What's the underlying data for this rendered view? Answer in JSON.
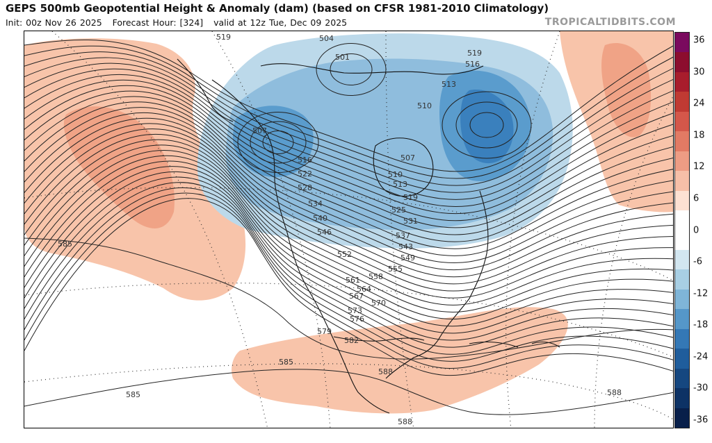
{
  "header": {
    "title": "GEPS 500mb Geopotential Height & Anomaly (dam) (based on CFSR 1981-2010 Climatology)",
    "init": "Init: 00z Nov 26 2025",
    "forecast_hour": "Forecast Hour: [324]",
    "valid": "valid at 12z Tue, Dec 09 2025",
    "credit": "TROPICALTIDBITS.COM"
  },
  "colorbar": {
    "ticks": [
      "36",
      "30",
      "24",
      "18",
      "12",
      "6",
      "0",
      "-6",
      "-12",
      "-18",
      "-24",
      "-30",
      "-36"
    ],
    "colors": [
      "#7a0a5e",
      "#8c0d2e",
      "#a81d2c",
      "#c03a33",
      "#d4574a",
      "#e27a64",
      "#ed9c84",
      "#f6bfa8",
      "#fde1d3",
      "#ffffff",
      "#ffffff",
      "#d2e6f0",
      "#a8cfe4",
      "#7fb5d8",
      "#5597c9",
      "#3478b6",
      "#1f5d9c",
      "#154780",
      "#0d3265",
      "#081f4a"
    ]
  },
  "contour_labels": [
    "519",
    "504",
    "501",
    "519",
    "516",
    "513",
    "510",
    "507",
    "507",
    "516",
    "522",
    "528",
    "534",
    "540",
    "546",
    "552",
    "510",
    "513",
    "519",
    "525",
    "531",
    "537",
    "543",
    "549",
    "555",
    "558",
    "561",
    "564",
    "567",
    "570",
    "573",
    "576",
    "579",
    "582",
    "585",
    "585",
    "585",
    "588",
    "588",
    "588"
  ],
  "map": {
    "background": "#ffffff",
    "positive_anomaly_color": "#f8c4aa",
    "strong_positive_color": "#ee9d80",
    "negative_anomaly_colors": [
      "#bcd9ea",
      "#8fbddd",
      "#5a9ccd",
      "#3a80bd"
    ],
    "contour_color": "#222222",
    "coastline_color": "#111111",
    "grid_color": "#333333"
  }
}
